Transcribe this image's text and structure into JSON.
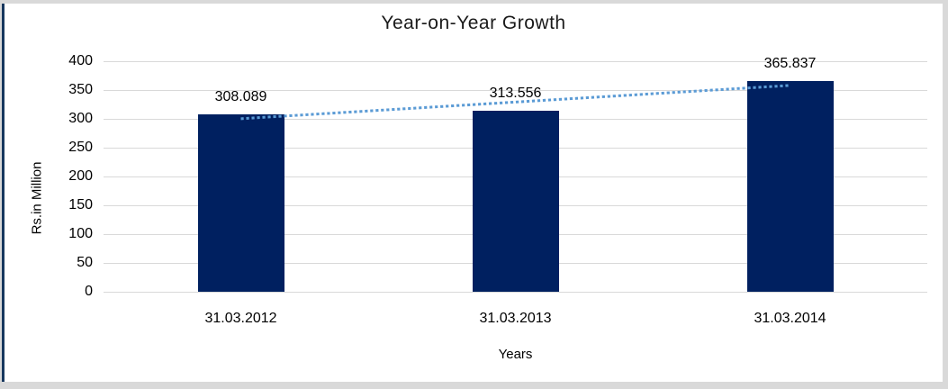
{
  "chart_data": {
    "type": "bar",
    "title": "Year-on-Year Growth",
    "categories": [
      "31.03.2012",
      "31.03.2013",
      "31.03.2014"
    ],
    "values": [
      308.089,
      313.556,
      365.837
    ],
    "data_labels": [
      "308.089",
      "313.556",
      "365.837"
    ],
    "xlabel": "Years",
    "ylabel": "Rs.in Million",
    "ylim": [
      0,
      400
    ],
    "yticks": [
      0,
      50,
      100,
      150,
      200,
      250,
      300,
      350,
      400
    ],
    "grid": "horizontal",
    "legend": "none",
    "trendline": {
      "type": "linear",
      "style": "dotted"
    },
    "colors": {
      "bar": "#002060",
      "trendline": "#5B9BD5",
      "gridline": "#D9D9D9",
      "text": "#000000",
      "chart_border": "#17375E",
      "page_margin": "#D9D9D9",
      "plot_background": "#FFFFFF"
    }
  }
}
